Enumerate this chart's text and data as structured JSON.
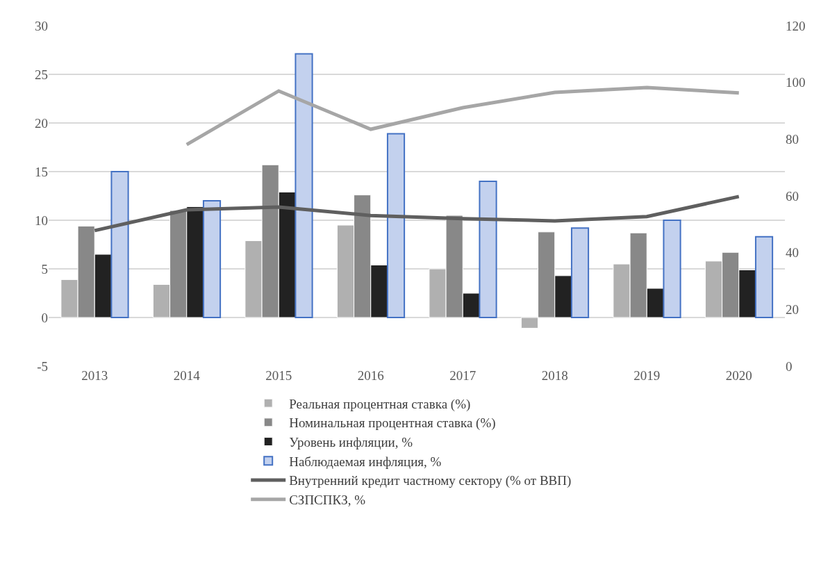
{
  "chart_data": {
    "type": "bar",
    "categories": [
      "2013",
      "2014",
      "2015",
      "2016",
      "2017",
      "2018",
      "2019",
      "2020"
    ],
    "series": [
      {
        "name": "Реальная процентная ставка (%)",
        "color": "#b0b0b0",
        "values": [
          3.9,
          3.4,
          7.9,
          9.5,
          5.0,
          -1.1,
          5.5,
          5.8
        ]
      },
      {
        "name": "Номинальная процентная ставка (%)",
        "color": "#888888",
        "values": [
          9.4,
          11.0,
          15.7,
          12.6,
          10.5,
          8.8,
          8.7,
          6.7
        ]
      },
      {
        "name": "Уровень инфляции, %",
        "color": "#222222",
        "values": [
          6.5,
          11.4,
          12.9,
          5.4,
          2.5,
          4.3,
          3.0,
          4.9
        ]
      },
      {
        "name": "Наблюдаемая инфляция, %",
        "color": "#c3d1ee",
        "values": [
          15.0,
          12.0,
          27.1,
          18.9,
          14.0,
          9.2,
          10.0,
          8.3
        ]
      },
      {
        "name": "Внутренний кредит частному сектору (% от ВВП)",
        "color": "#5f5f5f",
        "type": "line",
        "axis": "y2",
        "values": [
          47.8,
          55.1,
          56.1,
          53.1,
          52.0,
          51.2,
          52.7,
          59.8
        ]
      },
      {
        "name": "СЗПСПКЗ, %",
        "color": "#a6a6a6",
        "type": "line",
        "axis": "y2",
        "values": [
          null,
          78.1,
          97.0,
          83.5,
          91.1,
          96.5,
          98.2,
          96.3
        ]
      }
    ],
    "ylim": [
      -5,
      30
    ],
    "yticks": [
      -5,
      0,
      5,
      10,
      15,
      20,
      25,
      30
    ],
    "y2lim": [
      0,
      120
    ],
    "y2ticks": [
      0,
      20,
      40,
      60,
      80,
      100,
      120
    ],
    "grid": "y",
    "legend": "bottom",
    "marker": "none",
    "line_style": "solid"
  }
}
